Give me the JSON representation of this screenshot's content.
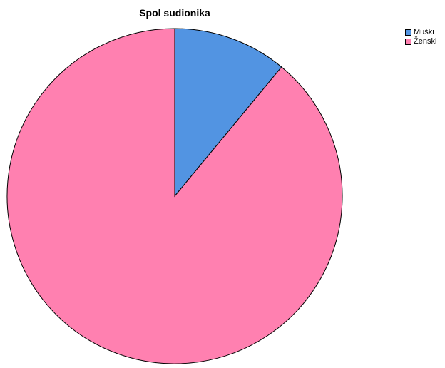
{
  "chart_data": {
    "type": "pie",
    "title": "Spol sudionika",
    "categories": [
      "Muški",
      "Ženski"
    ],
    "values": [
      11,
      89
    ],
    "colors": [
      "#5294e2",
      "#ff80b0"
    ],
    "start": "12 o'clock",
    "direction": "clockwise",
    "legend": "top-right"
  }
}
